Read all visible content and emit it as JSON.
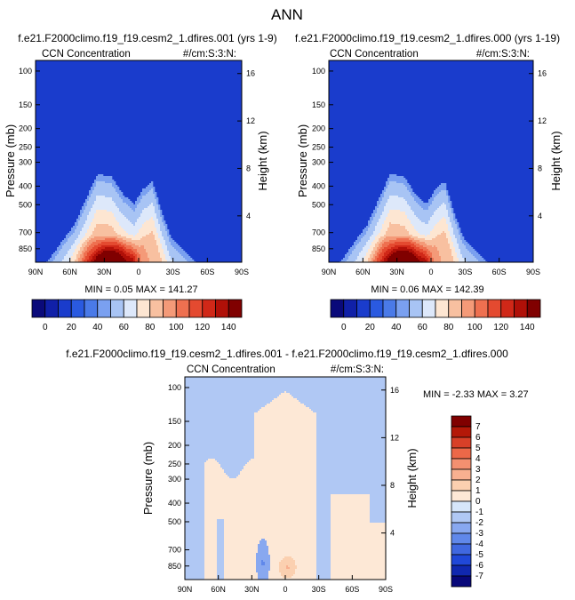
{
  "page_title": "ANN",
  "colors": {
    "top_scale": [
      "#0a0a7a",
      "#1020a8",
      "#1a3ccc",
      "#2a5ae0",
      "#4a7ae8",
      "#7aa0f0",
      "#a8c4f4",
      "#dde8fa",
      "#fde6d2",
      "#f8c0a0",
      "#f49a78",
      "#ee7050",
      "#e44a30",
      "#d02818",
      "#b01008",
      "#800000"
    ],
    "diff_scale": [
      "#08087a",
      "#1028b0",
      "#2048d8",
      "#4068e0",
      "#6088ea",
      "#88a8f0",
      "#b0c8f4",
      "#d6e6fa",
      "#fde8d6",
      "#fbd0b0",
      "#f8b090",
      "#f49070",
      "#ec6848",
      "#d84028",
      "#b41808",
      "#800000"
    ],
    "frame": "#000000"
  },
  "chart_data": [
    {
      "type": "heatmap",
      "title": "f.e21.F2000climo.f19_f19.cesm2_1.dfires.001 (yrs 1-9)",
      "left_label": "CCN Concentration",
      "right_label": "#/cm:S:3:N:",
      "ylabel": "Pressure (mb)",
      "ylabel_right": "Height (km)",
      "x_ticks": [
        "90N",
        "60N",
        "30N",
        "0",
        "30S",
        "60S",
        "90S"
      ],
      "y_ticks": [
        "100",
        "150",
        "200",
        "250",
        "300",
        "400",
        "500",
        "700",
        "850"
      ],
      "y_ticks_right": [
        "16",
        "12",
        "8",
        "4"
      ],
      "stats": "MIN =  0.05   MAX = 141.27",
      "profile": [
        [
          -90,
          0
        ],
        [
          -80,
          0
        ],
        [
          -72,
          1
        ],
        [
          -64,
          2
        ],
        [
          -56,
          3
        ],
        [
          -46,
          5
        ],
        [
          -36,
          7
        ],
        [
          -24,
          6.8
        ],
        [
          -14,
          5.4
        ],
        [
          -4,
          4.6
        ],
        [
          4,
          5.8
        ],
        [
          12,
          6.4
        ],
        [
          20,
          4
        ],
        [
          28,
          2
        ],
        [
          36,
          1.2
        ],
        [
          44,
          0.5
        ],
        [
          50,
          0
        ],
        [
          90,
          0
        ]
      ],
      "blob": {
        "lat": -25,
        "width": 20,
        "amp": 6
      },
      "spike": {
        "lat": -5,
        "width": 4,
        "amp": 4
      }
    },
    {
      "type": "heatmap",
      "title": "f.e21.F2000climo.f19_f19.cesm2_1.dfires.000 (yrs 1-19)",
      "left_label": "CCN Concentration",
      "right_label": "#/cm:S:3:N:",
      "ylabel": "Pressure (mb)",
      "ylabel_right": "Height (km)",
      "x_ticks": [
        "90N",
        "60N",
        "30N",
        "0",
        "30S",
        "60S",
        "90S"
      ],
      "y_ticks": [
        "100",
        "150",
        "200",
        "250",
        "300",
        "400",
        "500",
        "700",
        "850"
      ],
      "y_ticks_right": [
        "16",
        "12",
        "8",
        "4"
      ],
      "stats": "MIN =  0.06   MAX = 142.39",
      "profile": [
        [
          -90,
          0
        ],
        [
          -80,
          0
        ],
        [
          -72,
          1
        ],
        [
          -64,
          2
        ],
        [
          -56,
          3
        ],
        [
          -46,
          5
        ],
        [
          -36,
          7
        ],
        [
          -24,
          6.8
        ],
        [
          -14,
          5.4
        ],
        [
          -4,
          4.6
        ],
        [
          4,
          5.8
        ],
        [
          12,
          6.4
        ],
        [
          20,
          4
        ],
        [
          28,
          2
        ],
        [
          36,
          1.2
        ],
        [
          44,
          0.5
        ],
        [
          50,
          0
        ],
        [
          90,
          0
        ]
      ],
      "blob": {
        "lat": -25,
        "width": 20,
        "amp": 6
      },
      "spike": {
        "lat": -5,
        "width": 4,
        "amp": 4
      }
    },
    {
      "type": "heatmap",
      "title": "f.e21.F2000climo.f19_f19.cesm2_1.dfires.001 - f.e21.F2000climo.f19_f19.cesm2_1.dfires.000",
      "left_label": "CCN Concentration",
      "right_label": "#/cm:S:3:N:",
      "ylabel": "Pressure (mb)",
      "ylabel_right": "Height (km)",
      "x_ticks": [
        "90N",
        "60N",
        "30N",
        "0",
        "30S",
        "60S",
        "90S"
      ],
      "y_ticks": [
        "100",
        "150",
        "200",
        "250",
        "300",
        "400",
        "500",
        "700",
        "850"
      ],
      "y_ticks_right": [
        "16",
        "12",
        "8",
        "4"
      ],
      "stats": "MIN = -2.33   MAX =  3.27"
    }
  ],
  "colorbar_top": {
    "labels": [
      "0",
      "20",
      "40",
      "60",
      "80",
      "100",
      "120",
      "140"
    ]
  },
  "colorbar_diff": {
    "labels": [
      "7",
      "6",
      "5",
      "4",
      "3",
      "2",
      "1",
      "0",
      "-1",
      "-2",
      "-3",
      "-4",
      "-5",
      "-6",
      "-7"
    ]
  }
}
